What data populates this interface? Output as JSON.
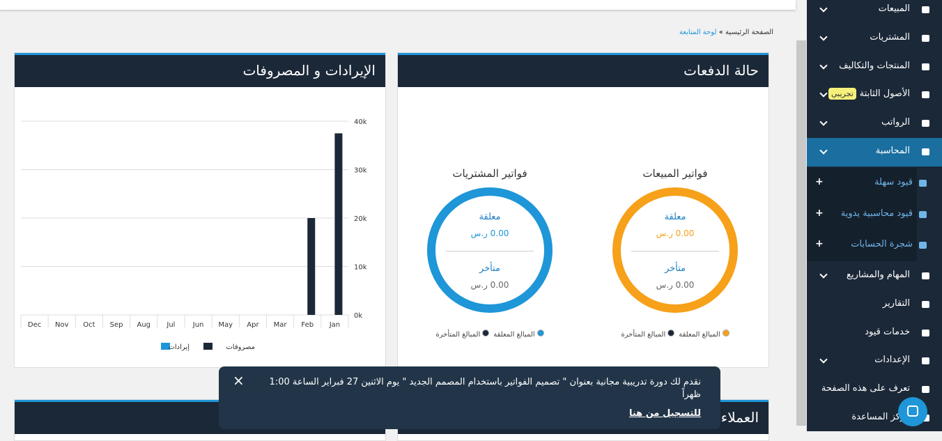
{
  "breadcrumb": {
    "home": "الصفحة الرئيسية",
    "current": "لوحة المتابعة"
  },
  "sidebar": [
    {
      "label": "المبيعات",
      "chevron": true
    },
    {
      "label": "المشتريات",
      "chevron": true
    },
    {
      "label": "المنتجات والتكاليف",
      "chevron": true
    },
    {
      "label": "الأصول الثابتة",
      "chevron": true,
      "badge": "تجريبي"
    },
    {
      "label": "الرواتب",
      "chevron": true
    },
    {
      "label": "المحاسبة",
      "chevron": true,
      "active": true
    },
    {
      "label": "قيود سهلة",
      "sub": true
    },
    {
      "label": "قيود محاسبية يدوية",
      "sub": true
    },
    {
      "label": "شجرة الحسابات",
      "sub": true
    },
    {
      "label": "المهام والمشاريع",
      "chevron": true
    },
    {
      "label": "التقارير"
    },
    {
      "label": "خدمات قيود"
    },
    {
      "label": "الإعدادات",
      "chevron": true
    },
    {
      "label": "تعرف على هذه الصفحة"
    },
    {
      "label": "مركز المساعدة"
    }
  ],
  "payments": {
    "title": "حالة الدفعات",
    "donuts": [
      {
        "title": "فواتير المبيعات",
        "color": "#f7a01a",
        "pending_label": "معلقة",
        "pending_amount": "0.00 ر.س",
        "late_label": "متأخر",
        "late_amount": "0.00 ر.س",
        "legend_pending": "المبالغ المعلقة",
        "legend_late": "المبالغ المتأخرة"
      },
      {
        "title": "فواتير المشتريات",
        "color": "#1e96d8",
        "pending_label": "معلقة",
        "pending_amount": "0.00 ر.س",
        "late_label": "متأخر",
        "late_amount": "0.00 ر.س",
        "legend_pending": "المبالغ المعلقة",
        "legend_late": "المبالغ المتأخرة"
      }
    ]
  },
  "chart_data": {
    "type": "bar",
    "title": "الإيرادات و المصروفات",
    "categories": [
      "Dec",
      "Nov",
      "Oct",
      "Sep",
      "Aug",
      "Jul",
      "Jun",
      "May",
      "Apr",
      "Mar",
      "Feb",
      "Jan"
    ],
    "series": [
      {
        "name": "إيرادات",
        "color": "#1e96d8",
        "values": [
          0,
          0,
          0,
          0,
          0,
          0,
          0,
          0,
          0,
          0,
          0,
          0
        ]
      },
      {
        "name": "مصروفات",
        "color": "#1b2838",
        "values": [
          0,
          0,
          0,
          0,
          0,
          0,
          0,
          0,
          0,
          0,
          20000,
          37500
        ]
      }
    ],
    "ylim": [
      0,
      40000
    ],
    "yticks": [
      {
        "value": 0,
        "label": "0k"
      },
      {
        "value": 10000,
        "label": "10k"
      },
      {
        "value": 20000,
        "label": "20k"
      },
      {
        "value": 30000,
        "label": "30k"
      },
      {
        "value": 40000,
        "label": "40k"
      }
    ],
    "grid": true
  },
  "customers": {
    "title": "العملاء"
  },
  "toast": {
    "text": "نقدم لك دورة تدريبية مجانية بعنوان \" تصميم الفواتير باستخدام المصمم الجديد \" يوم الاثنين 27 فبراير الساعة 1:00 ظهراً",
    "link": "للتسجيل من هنا",
    "close": "×"
  }
}
